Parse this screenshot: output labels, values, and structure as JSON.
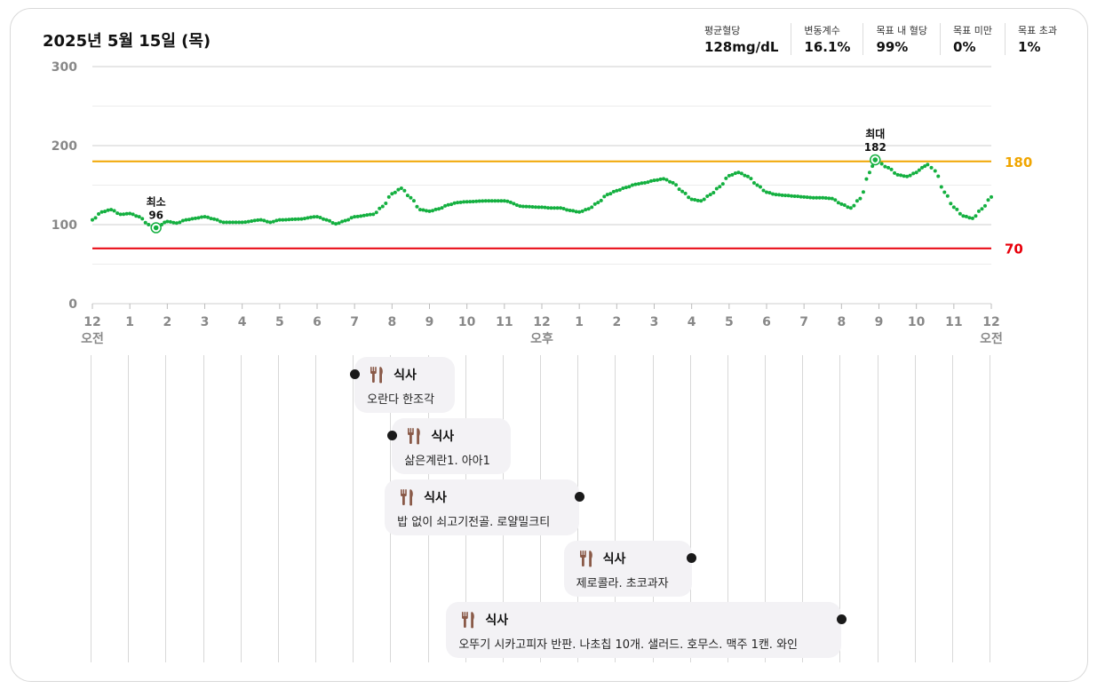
{
  "date": "2025년 5월 15일 (목)",
  "stats": [
    {
      "label": "평균혈당",
      "value": "128mg/dL"
    },
    {
      "label": "변동계수",
      "value": "16.1%"
    },
    {
      "label": "목표 내 혈당",
      "value": "99%"
    },
    {
      "label": "목표 미만",
      "value": "0%"
    },
    {
      "label": "목표 초과",
      "value": "1%"
    }
  ],
  "chart_data": {
    "type": "line",
    "ylim": [
      0,
      300
    ],
    "y_ticks": [
      "0",
      "100",
      "200",
      "300"
    ],
    "x_range_hours": [
      0,
      24
    ],
    "x_ticks": [
      {
        "hour": 0,
        "label": "12",
        "sub": "오전"
      },
      {
        "hour": 1,
        "label": "1"
      },
      {
        "hour": 2,
        "label": "2"
      },
      {
        "hour": 3,
        "label": "3"
      },
      {
        "hour": 4,
        "label": "4"
      },
      {
        "hour": 5,
        "label": "5"
      },
      {
        "hour": 6,
        "label": "6"
      },
      {
        "hour": 7,
        "label": "7"
      },
      {
        "hour": 8,
        "label": "8"
      },
      {
        "hour": 9,
        "label": "9"
      },
      {
        "hour": 10,
        "label": "10"
      },
      {
        "hour": 11,
        "label": "11"
      },
      {
        "hour": 12,
        "label": "12",
        "sub": "오후"
      },
      {
        "hour": 13,
        "label": "1"
      },
      {
        "hour": 14,
        "label": "2"
      },
      {
        "hour": 15,
        "label": "3"
      },
      {
        "hour": 16,
        "label": "4"
      },
      {
        "hour": 17,
        "label": "5"
      },
      {
        "hour": 18,
        "label": "6"
      },
      {
        "hour": 19,
        "label": "7"
      },
      {
        "hour": 20,
        "label": "8"
      },
      {
        "hour": 21,
        "label": "9"
      },
      {
        "hour": 22,
        "label": "10"
      },
      {
        "hour": 23,
        "label": "11"
      },
      {
        "hour": 24,
        "label": "12",
        "sub": "오전"
      }
    ],
    "thresholds": [
      {
        "value": 180,
        "label": "180",
        "color": "#f0a500"
      },
      {
        "value": 70,
        "label": "70",
        "color": "#e8000b"
      }
    ],
    "series_color": "#14b040",
    "glucose": [
      [
        0.0,
        106
      ],
      [
        0.25,
        116
      ],
      [
        0.5,
        119
      ],
      [
        0.75,
        113
      ],
      [
        1.0,
        114
      ],
      [
        1.25,
        110
      ],
      [
        1.5,
        100
      ],
      [
        1.7,
        96
      ],
      [
        2.0,
        104
      ],
      [
        2.25,
        102
      ],
      [
        2.5,
        106
      ],
      [
        2.75,
        108
      ],
      [
        3.0,
        110
      ],
      [
        3.25,
        107
      ],
      [
        3.5,
        103
      ],
      [
        4.0,
        103
      ],
      [
        4.5,
        106
      ],
      [
        4.75,
        103
      ],
      [
        5.0,
        106
      ],
      [
        5.5,
        107
      ],
      [
        6.0,
        110
      ],
      [
        6.25,
        106
      ],
      [
        6.5,
        101
      ],
      [
        6.75,
        105
      ],
      [
        7.0,
        110
      ],
      [
        7.5,
        113
      ],
      [
        7.75,
        123
      ],
      [
        8.0,
        139
      ],
      [
        8.25,
        146
      ],
      [
        8.5,
        134
      ],
      [
        8.75,
        119
      ],
      [
        9.0,
        117
      ],
      [
        9.25,
        120
      ],
      [
        9.5,
        125
      ],
      [
        9.75,
        128
      ],
      [
        10.0,
        129
      ],
      [
        10.5,
        130
      ],
      [
        11.0,
        130
      ],
      [
        11.5,
        123
      ],
      [
        12.0,
        122
      ],
      [
        12.25,
        121
      ],
      [
        12.5,
        121
      ],
      [
        12.75,
        118
      ],
      [
        13.0,
        116
      ],
      [
        13.25,
        120
      ],
      [
        13.5,
        128
      ],
      [
        13.75,
        138
      ],
      [
        14.0,
        143
      ],
      [
        14.25,
        147
      ],
      [
        14.5,
        151
      ],
      [
        14.75,
        153
      ],
      [
        15.0,
        156
      ],
      [
        15.25,
        158
      ],
      [
        15.5,
        153
      ],
      [
        15.75,
        142
      ],
      [
        16.0,
        132
      ],
      [
        16.25,
        130
      ],
      [
        16.5,
        138
      ],
      [
        16.75,
        148
      ],
      [
        17.0,
        162
      ],
      [
        17.25,
        166
      ],
      [
        17.5,
        161
      ],
      [
        17.75,
        150
      ],
      [
        18.0,
        141
      ],
      [
        18.25,
        138
      ],
      [
        18.5,
        137
      ],
      [
        18.75,
        136
      ],
      [
        19.0,
        135
      ],
      [
        19.25,
        134
      ],
      [
        19.5,
        134
      ],
      [
        19.75,
        133
      ],
      [
        20.0,
        126
      ],
      [
        20.25,
        121
      ],
      [
        20.5,
        133
      ],
      [
        20.75,
        166
      ],
      [
        20.9,
        182
      ],
      [
        21.25,
        172
      ],
      [
        21.5,
        163
      ],
      [
        21.75,
        161
      ],
      [
        22.0,
        166
      ],
      [
        22.15,
        172
      ],
      [
        22.3,
        176
      ],
      [
        22.5,
        168
      ],
      [
        22.75,
        141
      ],
      [
        23.0,
        122
      ],
      [
        23.25,
        111
      ],
      [
        23.5,
        108
      ],
      [
        23.75,
        120
      ],
      [
        24.0,
        135
      ]
    ],
    "annotations": [
      {
        "name": "min",
        "label": "최소",
        "value": "96",
        "hour": 1.7,
        "glucose": 96
      },
      {
        "name": "max",
        "label": "최대",
        "value": "182",
        "hour": 20.9,
        "glucose": 182
      }
    ]
  },
  "meals": [
    {
      "title": "식사",
      "desc": "오란다 한조각",
      "hour": 7.0
    },
    {
      "title": "식사",
      "desc": "삶은계란1. 아아1",
      "hour": 8.0
    },
    {
      "title": "식사",
      "desc": "밥 없이 쇠고기전골. 로얄밀크티",
      "hour": 13.0
    },
    {
      "title": "식사",
      "desc": "제로콜라. 초코과자",
      "hour": 16.0
    },
    {
      "title": "식사",
      "desc": "오뚜기 시카고피자 반판. 나초칩 10개. 샐러드. 호무스. 맥주 1캔. 와인",
      "hour": 20.0
    }
  ]
}
